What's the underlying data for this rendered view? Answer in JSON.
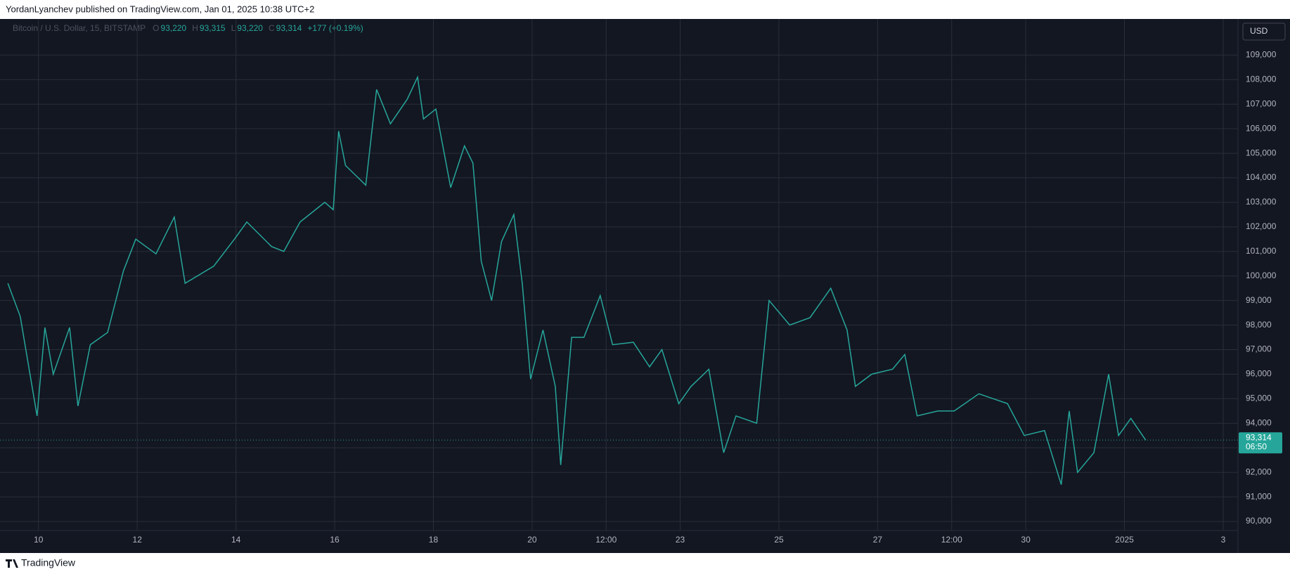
{
  "header": "YordanLyanchev published on TradingView.com, Jan 01, 2025 10:38 UTC+2",
  "footer": "TradingView",
  "chart_data": {
    "type": "line",
    "legend": {
      "symbol": "Bitcoin / U.S. Dollar, 15, BITSTAMP",
      "ohlc": [
        {
          "key": "O",
          "value": "93,220"
        },
        {
          "key": "H",
          "value": "93,315"
        },
        {
          "key": "L",
          "value": "93,220"
        },
        {
          "key": "C",
          "value": "93,314"
        }
      ],
      "change": "+177 (+0.19%)"
    },
    "currency": "USD",
    "last_price": {
      "value": 93314,
      "label": "93,314"
    },
    "countdown": "06:50",
    "xlim": [
      9.22,
      34.3
    ],
    "ylim": [
      89630,
      110470
    ],
    "xticks": [
      10,
      12,
      14,
      16,
      18,
      20,
      {
        "value": 21.5,
        "label": "12:00"
      },
      23,
      25,
      27,
      {
        "value": 28.5,
        "label": "12:00"
      },
      30,
      {
        "value": 32,
        "label": "2025"
      },
      {
        "value": 34,
        "label": "3"
      }
    ],
    "yticks": [
      {
        "value": 90000,
        "label": "90,000"
      },
      {
        "value": 91000,
        "label": "91,000"
      },
      {
        "value": 92000,
        "label": "92,000"
      },
      {
        "value": 93000,
        "label": "93,000"
      },
      {
        "value": 94000,
        "label": "94,000"
      },
      {
        "value": 95000,
        "label": "95,000"
      },
      {
        "value": 96000,
        "label": "96,000"
      },
      {
        "value": 97000,
        "label": "97,000"
      },
      {
        "value": 98000,
        "label": "98,000"
      },
      {
        "value": 99000,
        "label": "99,000"
      },
      {
        "value": 100000,
        "label": "100,000"
      },
      {
        "value": 101000,
        "label": "101,000"
      },
      {
        "value": 102000,
        "label": "102,000"
      },
      {
        "value": 103000,
        "label": "103,000"
      },
      {
        "value": 104000,
        "label": "104,000"
      },
      {
        "value": 105000,
        "label": "105,000"
      },
      {
        "value": 106000,
        "label": "106,000"
      },
      {
        "value": 107000,
        "label": "107,000"
      },
      {
        "value": 108000,
        "label": "108,000"
      },
      {
        "value": 109000,
        "label": "109,000"
      }
    ],
    "grid": true,
    "series": [
      {
        "color": "#26a69a",
        "x": [
          9.38,
          9.63,
          9.97,
          10.13,
          10.3,
          10.63,
          10.8,
          11.05,
          11.4,
          11.72,
          11.97,
          12.38,
          12.75,
          12.97,
          13.55,
          13.97,
          14.22,
          14.72,
          14.97,
          15.3,
          15.8,
          15.97,
          16.08,
          16.22,
          16.63,
          16.85,
          17.13,
          17.47,
          17.68,
          17.8,
          18.05,
          18.35,
          18.63,
          18.8,
          18.97,
          19.18,
          19.38,
          19.63,
          19.8,
          19.97,
          20.22,
          20.47,
          20.58,
          20.8,
          21.05,
          21.38,
          21.63,
          22.05,
          22.38,
          22.63,
          22.97,
          23.22,
          23.58,
          23.88,
          24.13,
          24.55,
          24.8,
          25.22,
          25.63,
          26.05,
          26.38,
          26.55,
          26.88,
          27.3,
          27.55,
          27.8,
          28.22,
          28.55,
          29.05,
          29.63,
          29.97,
          30.38,
          30.72,
          30.88,
          31.05,
          31.38,
          31.68,
          31.88,
          32.13,
          32.43
        ],
        "values": [
          99700,
          98350,
          94300,
          97900,
          96000,
          97900,
          94700,
          97200,
          97700,
          100200,
          101500,
          100900,
          102400,
          99700,
          100400,
          101500,
          102200,
          101200,
          101000,
          102200,
          103000,
          102700,
          105900,
          104500,
          103700,
          107600,
          106200,
          107200,
          108100,
          106400,
          106800,
          103600,
          105300,
          104600,
          100600,
          99000,
          101400,
          102500,
          99700,
          95800,
          97800,
          95500,
          92300,
          97500,
          97500,
          99200,
          97200,
          97300,
          96300,
          97000,
          94800,
          95500,
          96200,
          92800,
          94300,
          94000,
          99000,
          98000,
          98300,
          99500,
          97800,
          95500,
          96000,
          96200,
          96800,
          94300,
          94500,
          94500,
          95200,
          94800,
          93500,
          93700,
          91500,
          94500,
          92000,
          92800,
          96000,
          93500,
          94200,
          93314
        ]
      }
    ]
  }
}
